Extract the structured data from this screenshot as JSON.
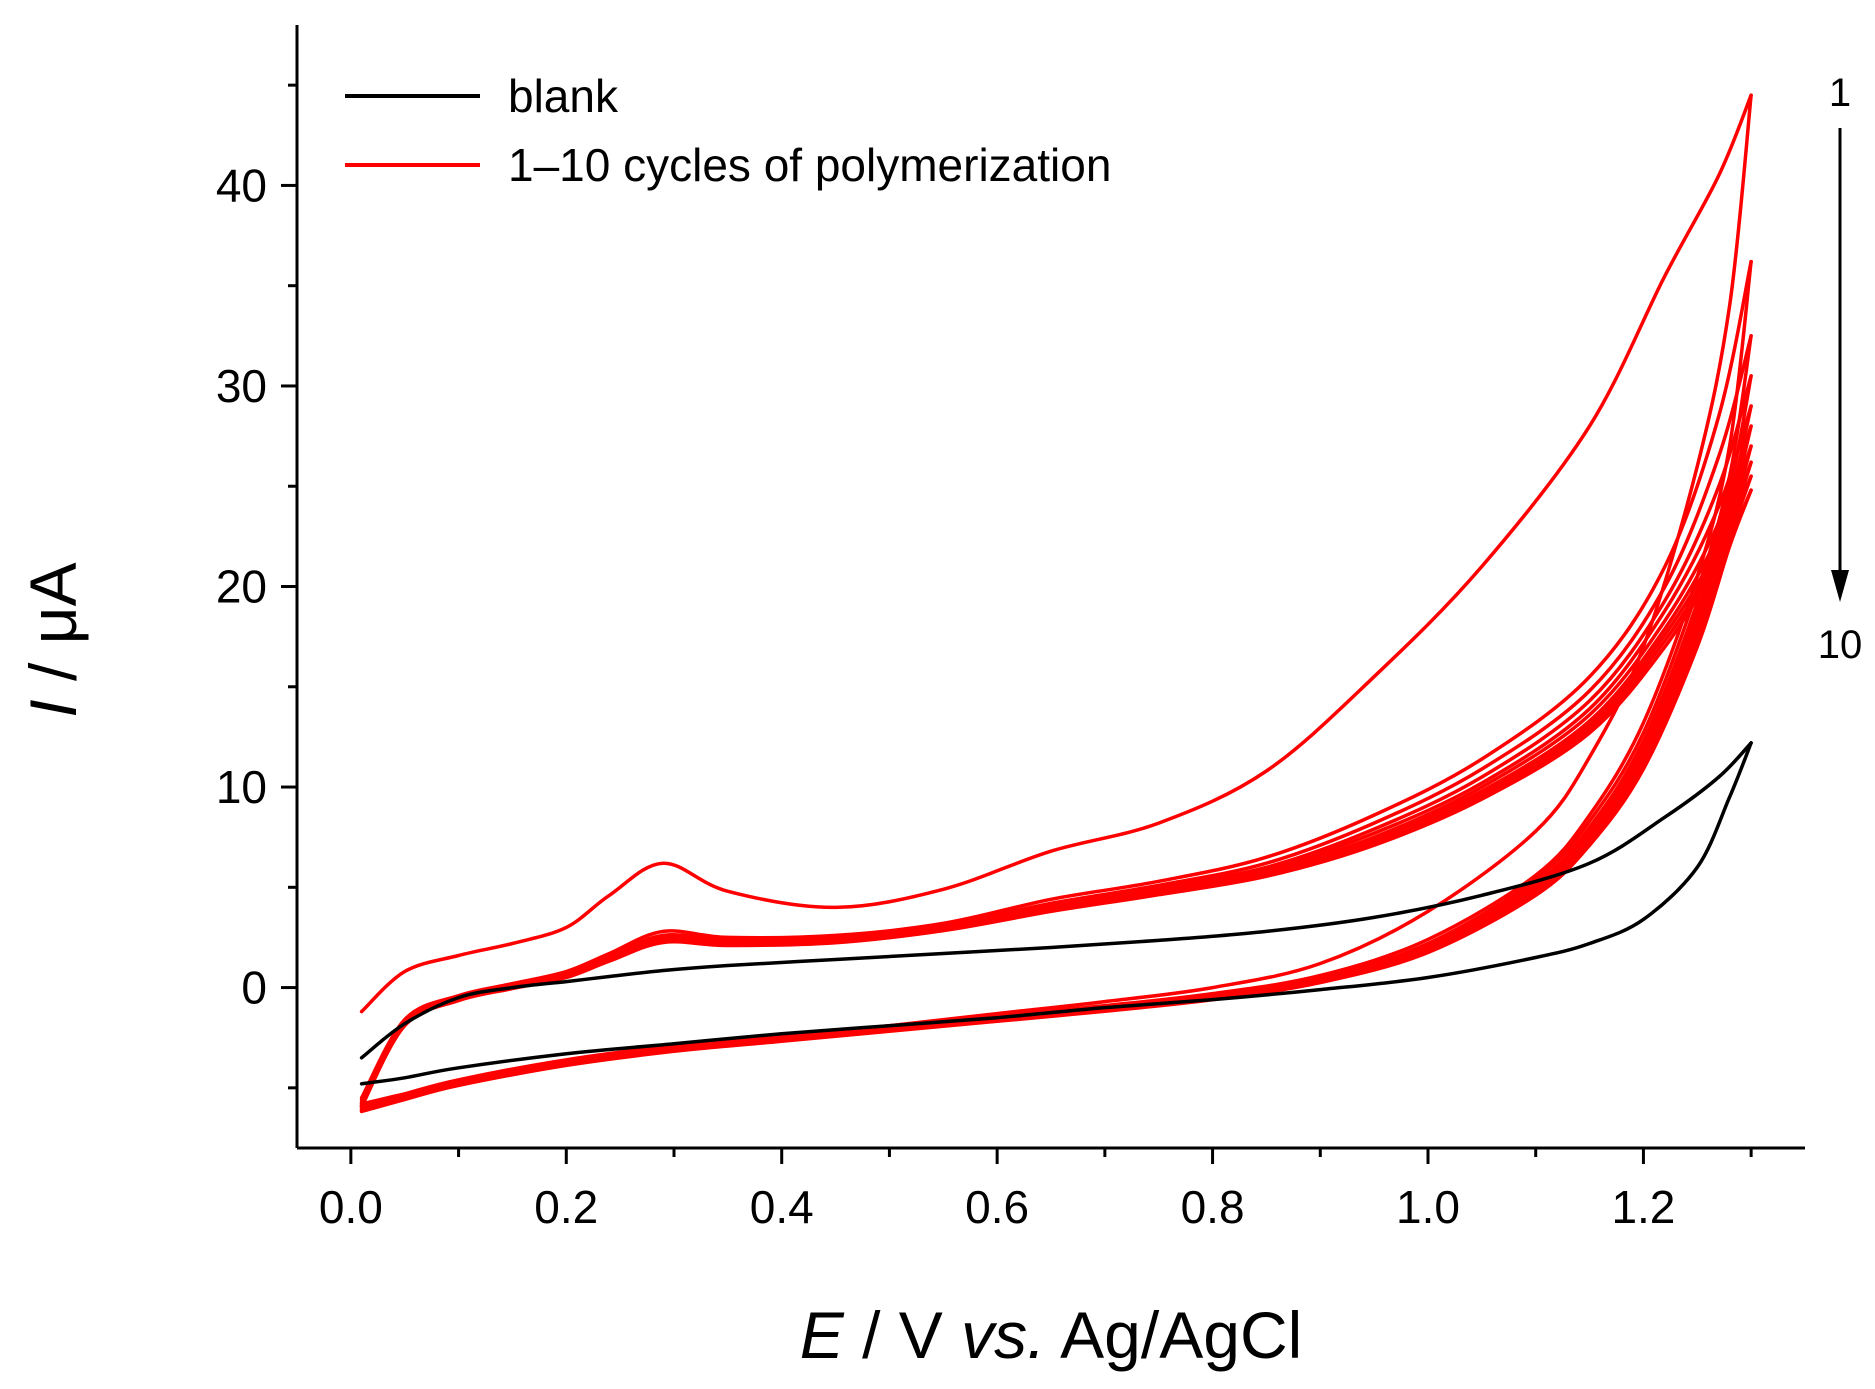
{
  "chart_data": {
    "type": "line",
    "title": "",
    "xlabel": {
      "var": "E",
      "unit": " / V ",
      "italic_part": "vs.",
      "rest": " Ag/AgCl"
    },
    "ylabel": {
      "var": "I",
      "unit": " / μA"
    },
    "xlim": [
      -0.05,
      1.35
    ],
    "ylim": [
      -8.0,
      48.0
    ],
    "xticks": [
      0.0,
      0.2,
      0.4,
      0.6,
      0.8,
      1.0,
      1.2
    ],
    "xtick_labels": [
      "0.0",
      "0.2",
      "0.4",
      "0.6",
      "0.8",
      "1.0",
      "1.2"
    ],
    "xticks_minor": [
      0.1,
      0.3,
      0.5,
      0.7,
      0.9,
      1.1,
      1.3
    ],
    "yticks": [
      0,
      10,
      20,
      30,
      40
    ],
    "ytick_labels": [
      "0",
      "10",
      "20",
      "30",
      "40"
    ],
    "yticks_minor": [
      -5,
      5,
      15,
      25,
      35,
      45
    ],
    "grid": false,
    "legend_position": "top-left",
    "legend": [
      {
        "label": "blank",
        "color": "#000000"
      },
      {
        "label": "1–10 cycles of polymerization",
        "color": "#ff0000"
      }
    ],
    "annotation": {
      "top": "1",
      "bottom": "10",
      "arrow": "down"
    },
    "cycles_cv": {
      "description": "cyclic voltammograms: forward (anodic) scan 0.0 to 1.3 V, reverse scan 1.3 to 0.0 V",
      "x_forward": [
        0.01,
        0.05,
        0.1,
        0.15,
        0.2,
        0.24,
        0.29,
        0.35,
        0.45,
        0.55,
        0.65,
        0.75,
        0.85,
        0.95,
        1.05,
        1.15,
        1.22,
        1.27,
        1.3
      ],
      "x_reverse": [
        1.3,
        1.28,
        1.25,
        1.2,
        1.15,
        1.1,
        1.0,
        0.9,
        0.8,
        0.7,
        0.6,
        0.5,
        0.4,
        0.3,
        0.2,
        0.1,
        0.05,
        0.01
      ]
    },
    "series": [
      {
        "name": "blank",
        "color": "#000000",
        "forward": [
          -3.5,
          -1.8,
          -0.5,
          0.0,
          0.3,
          0.55,
          0.85,
          1.1,
          1.4,
          1.7,
          2.0,
          2.35,
          2.8,
          3.5,
          4.6,
          6.2,
          8.5,
          10.5,
          12.2
        ],
        "reverse": [
          12.2,
          9.5,
          6.0,
          3.4,
          2.2,
          1.5,
          0.5,
          -0.1,
          -0.6,
          -1.0,
          -1.5,
          -1.9,
          -2.3,
          -2.8,
          -3.3,
          -4.0,
          -4.5,
          -4.8
        ]
      },
      {
        "name": "cycle 1",
        "color": "#ff0000",
        "forward": [
          -1.2,
          0.8,
          1.6,
          2.2,
          3.0,
          4.6,
          6.2,
          4.8,
          4.0,
          4.9,
          6.8,
          8.2,
          10.8,
          15.5,
          21.0,
          28.0,
          35.5,
          40.5,
          44.5
        ],
        "reverse": [
          44.5,
          34.0,
          26.0,
          17.0,
          11.5,
          7.8,
          3.8,
          1.2,
          0.0,
          -0.7,
          -1.3,
          -1.9,
          -2.5,
          -3.0,
          -3.8,
          -4.7,
          -5.3,
          -5.8
        ]
      },
      {
        "name": "cycle 2",
        "color": "#ff0000",
        "forward": [
          -5.5,
          -1.6,
          -0.4,
          0.2,
          0.8,
          1.7,
          2.8,
          2.5,
          2.6,
          3.2,
          4.4,
          5.3,
          6.5,
          8.6,
          11.4,
          15.5,
          21.0,
          28.5,
          36.2
        ],
        "reverse": [
          36.2,
          27.0,
          20.5,
          13.2,
          8.6,
          5.6,
          2.4,
          0.6,
          -0.3,
          -0.9,
          -1.4,
          -1.9,
          -2.4,
          -2.9,
          -3.6,
          -4.6,
          -5.3,
          -5.9
        ]
      },
      {
        "name": "cycle 3",
        "color": "#ff0000",
        "forward": [
          -5.6,
          -1.6,
          -0.45,
          0.15,
          0.75,
          1.6,
          2.6,
          2.4,
          2.5,
          3.1,
          4.2,
          5.1,
          6.2,
          8.2,
          10.9,
          14.8,
          20.0,
          26.5,
          32.5
        ],
        "reverse": [
          32.5,
          25.5,
          19.8,
          12.7,
          8.3,
          5.4,
          2.2,
          0.5,
          -0.35,
          -0.95,
          -1.45,
          -1.95,
          -2.45,
          -2.95,
          -3.65,
          -4.65,
          -5.35,
          -5.95
        ]
      },
      {
        "name": "cycle 4",
        "color": "#ff0000",
        "forward": [
          -5.7,
          -1.65,
          -0.5,
          0.1,
          0.7,
          1.55,
          2.5,
          2.35,
          2.45,
          3.05,
          4.1,
          5.0,
          6.0,
          7.9,
          10.5,
          14.3,
          19.3,
          25.0,
          30.5
        ],
        "reverse": [
          30.5,
          24.8,
          19.2,
          12.3,
          8.0,
          5.2,
          2.1,
          0.45,
          -0.4,
          -1.0,
          -1.5,
          -2.0,
          -2.5,
          -3.0,
          -3.7,
          -4.7,
          -5.4,
          -6.0
        ]
      },
      {
        "name": "cycle 5",
        "color": "#ff0000",
        "forward": [
          -5.75,
          -1.7,
          -0.5,
          0.1,
          0.65,
          1.5,
          2.45,
          2.3,
          2.4,
          3.0,
          4.0,
          4.9,
          5.9,
          7.7,
          10.2,
          13.9,
          18.8,
          24.0,
          29.0
        ],
        "reverse": [
          29.0,
          24.2,
          18.7,
          12.0,
          7.8,
          5.0,
          2.0,
          0.4,
          -0.45,
          -1.05,
          -1.55,
          -2.05,
          -2.55,
          -3.05,
          -3.75,
          -4.75,
          -5.45,
          -6.05
        ]
      },
      {
        "name": "cycle 6",
        "color": "#ff0000",
        "forward": [
          -5.8,
          -1.75,
          -0.55,
          0.05,
          0.6,
          1.45,
          2.4,
          2.25,
          2.35,
          2.95,
          3.95,
          4.8,
          5.8,
          7.5,
          10.0,
          13.6,
          18.3,
          23.2,
          28.0
        ],
        "reverse": [
          28.0,
          23.6,
          18.3,
          11.7,
          7.6,
          4.9,
          1.9,
          0.35,
          -0.5,
          -1.1,
          -1.6,
          -2.1,
          -2.6,
          -3.1,
          -3.8,
          -4.8,
          -5.5,
          -6.1
        ]
      },
      {
        "name": "cycle 7",
        "color": "#ff0000",
        "forward": [
          -5.85,
          -1.8,
          -0.55,
          0.05,
          0.6,
          1.4,
          2.35,
          2.2,
          2.3,
          2.9,
          3.9,
          4.75,
          5.7,
          7.4,
          9.8,
          13.3,
          17.9,
          22.6,
          27.0
        ],
        "reverse": [
          27.0,
          23.1,
          17.9,
          11.5,
          7.4,
          4.8,
          1.85,
          0.3,
          -0.55,
          -1.12,
          -1.62,
          -2.12,
          -2.62,
          -3.12,
          -3.82,
          -4.82,
          -5.52,
          -6.12
        ]
      },
      {
        "name": "cycle 8",
        "color": "#ff0000",
        "forward": [
          -5.9,
          -1.85,
          -0.6,
          0.0,
          0.55,
          1.38,
          2.3,
          2.15,
          2.28,
          2.88,
          3.85,
          4.7,
          5.65,
          7.3,
          9.65,
          13.1,
          17.6,
          22.1,
          26.2
        ],
        "reverse": [
          26.2,
          22.7,
          17.6,
          11.3,
          7.3,
          4.7,
          1.8,
          0.28,
          -0.57,
          -1.14,
          -1.64,
          -2.14,
          -2.64,
          -3.14,
          -3.84,
          -4.84,
          -5.54,
          -6.14
        ]
      },
      {
        "name": "cycle 9",
        "color": "#ff0000",
        "forward": [
          -5.92,
          -1.88,
          -0.6,
          0.0,
          0.55,
          1.35,
          2.28,
          2.12,
          2.26,
          2.86,
          3.82,
          4.66,
          5.6,
          7.2,
          9.5,
          12.9,
          17.3,
          21.7,
          25.5
        ],
        "reverse": [
          25.5,
          22.4,
          17.3,
          11.1,
          7.2,
          4.65,
          1.78,
          0.26,
          -0.59,
          -1.16,
          -1.66,
          -2.16,
          -2.66,
          -3.16,
          -3.86,
          -4.86,
          -5.56,
          -6.16
        ]
      },
      {
        "name": "cycle 10",
        "color": "#ff0000",
        "forward": [
          -5.95,
          -1.9,
          -0.65,
          -0.05,
          0.5,
          1.32,
          2.25,
          2.1,
          2.24,
          2.84,
          3.8,
          4.63,
          5.55,
          7.1,
          9.4,
          12.7,
          17.0,
          21.3,
          24.8
        ],
        "reverse": [
          24.8,
          22.0,
          17.0,
          10.9,
          7.1,
          4.6,
          1.75,
          0.25,
          -0.6,
          -1.18,
          -1.68,
          -2.18,
          -2.68,
          -3.18,
          -3.88,
          -4.88,
          -5.58,
          -6.18
        ]
      }
    ]
  }
}
